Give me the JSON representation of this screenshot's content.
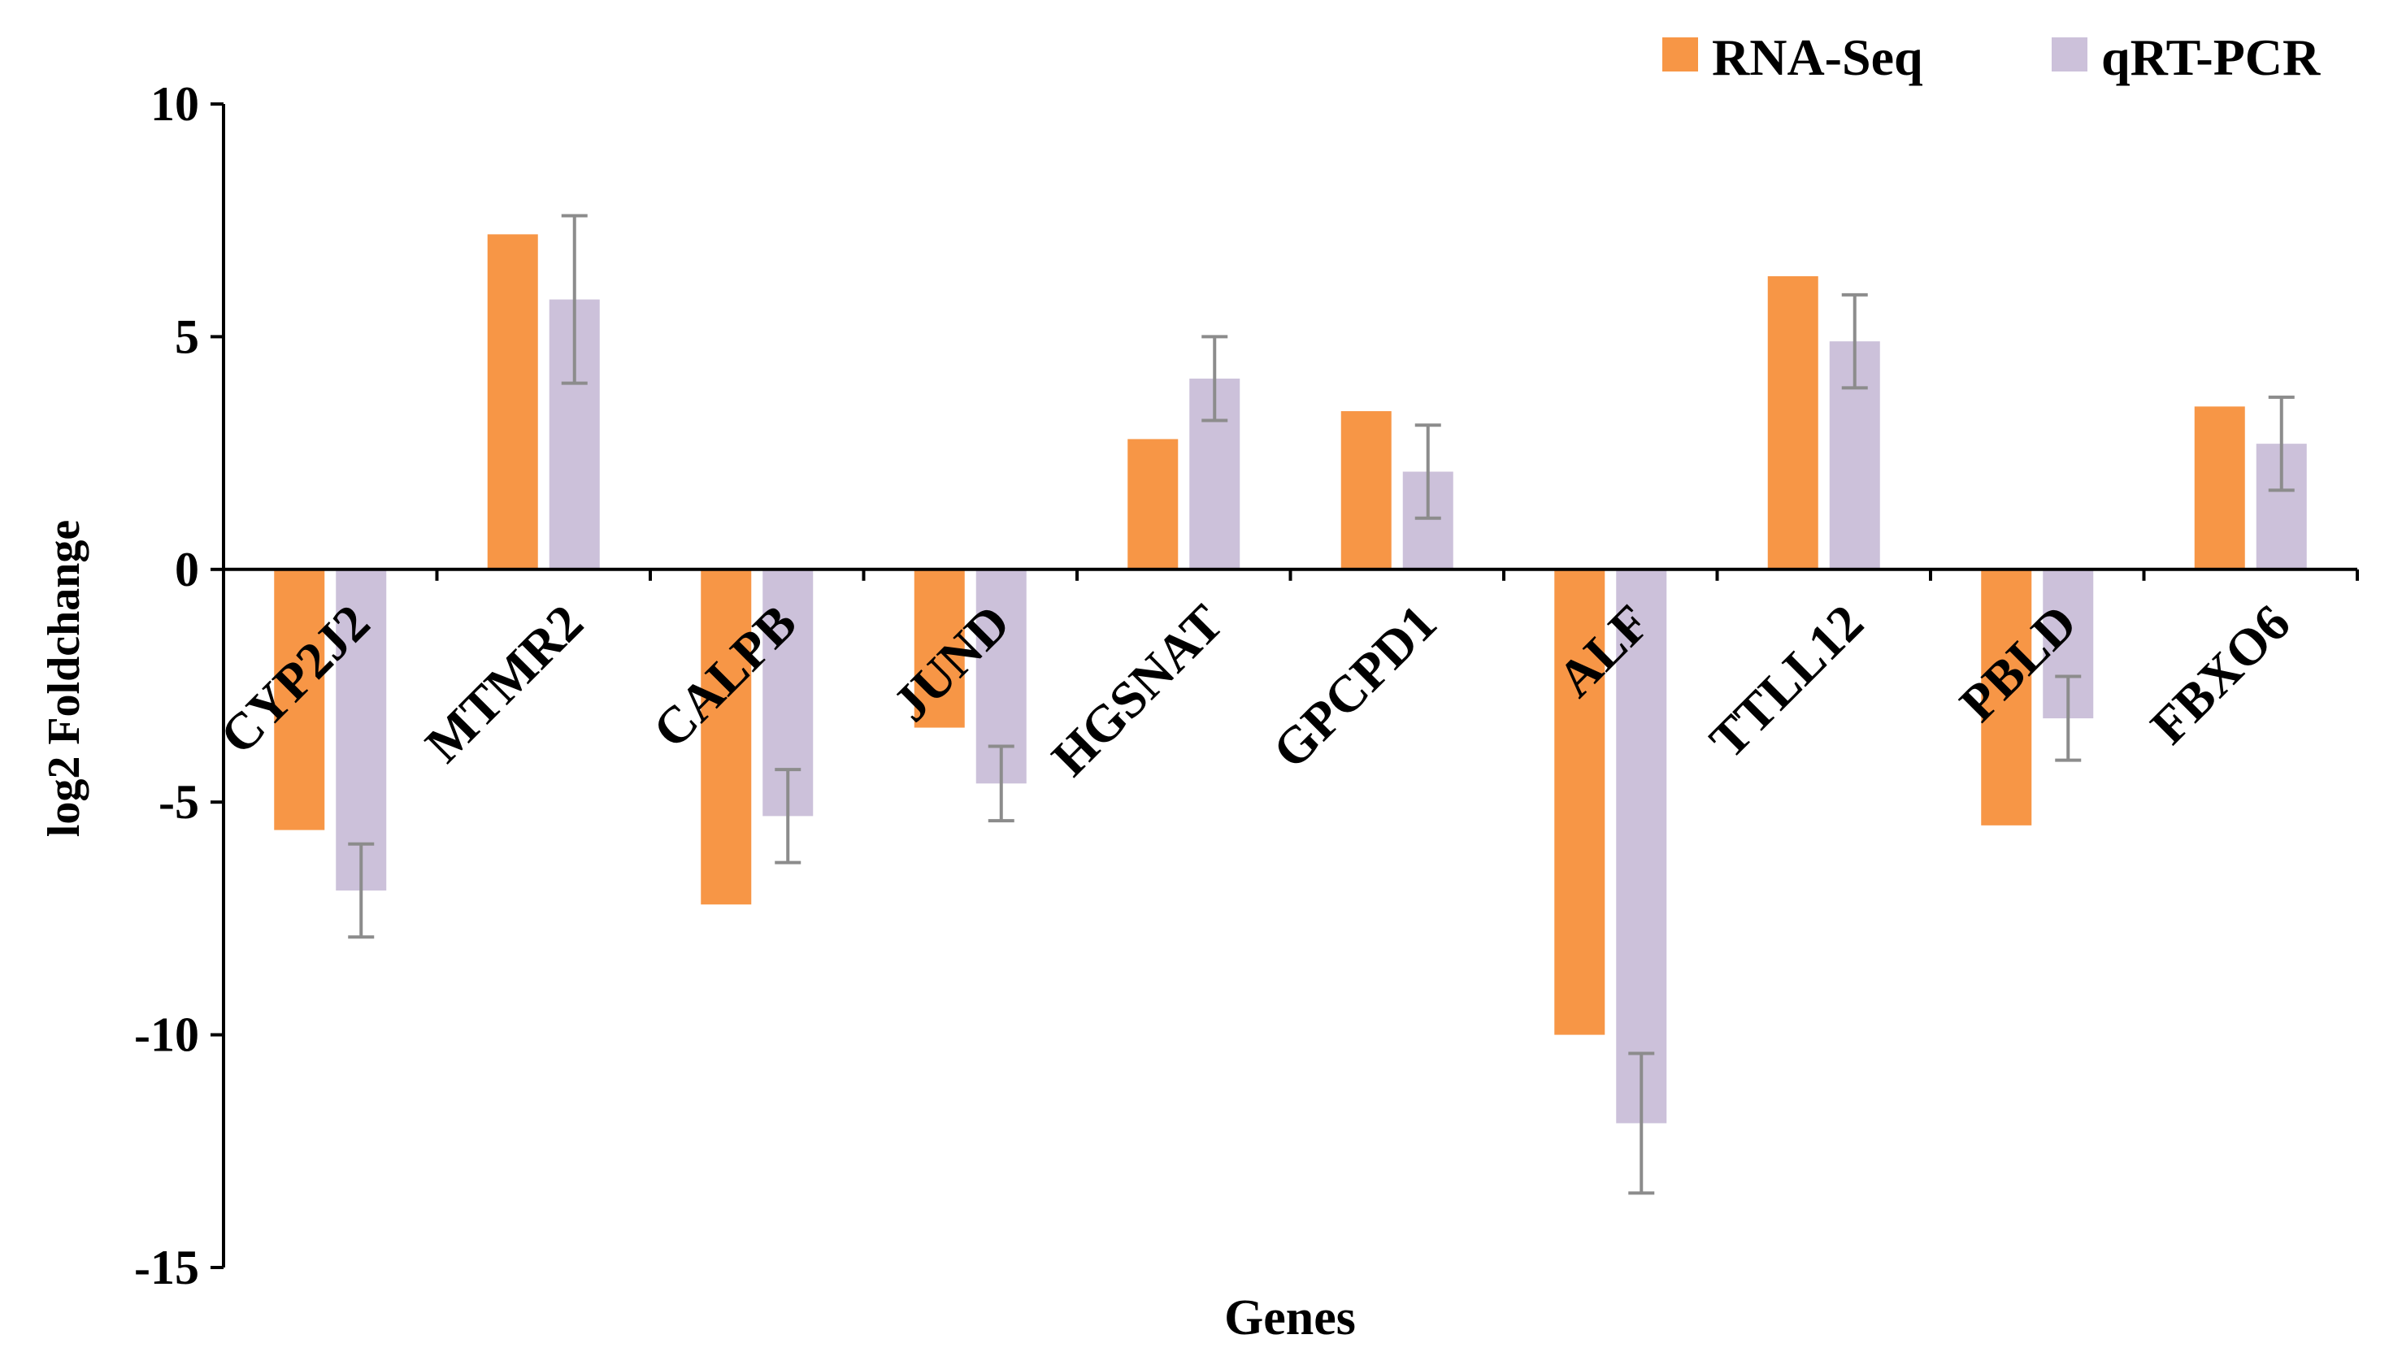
{
  "chart_data": {
    "type": "bar",
    "title": "",
    "xlabel": "Genes",
    "ylabel": "log2 Foldchange",
    "ylim": [
      -15,
      10
    ],
    "yticks": [
      10,
      5,
      0,
      -5,
      -10,
      -15
    ],
    "grid": false,
    "legend_position": "top-right",
    "categories": [
      "CYP2J2",
      "MTMR2",
      "CALPB",
      "JUND",
      "HGSNAT",
      "GPCPD1",
      "ALF",
      "TTLL12",
      "PBLD",
      "FBXO6"
    ],
    "series": [
      {
        "name": "RNA-Seq",
        "color": "#F79646",
        "values": [
          -5.6,
          7.2,
          -7.2,
          -3.4,
          2.8,
          3.4,
          -10.0,
          6.3,
          -5.5,
          3.5
        ]
      },
      {
        "name": "qRT-PCR",
        "color": "#CCC1DA",
        "values": [
          -6.9,
          5.8,
          -5.3,
          -4.6,
          4.1,
          2.1,
          -11.9,
          4.9,
          -3.2,
          2.7
        ],
        "errors": [
          1.0,
          1.8,
          1.0,
          0.8,
          0.9,
          1.0,
          1.5,
          1.0,
          0.9,
          1.0
        ]
      }
    ],
    "error_bar_color": "#8C8C8C"
  }
}
